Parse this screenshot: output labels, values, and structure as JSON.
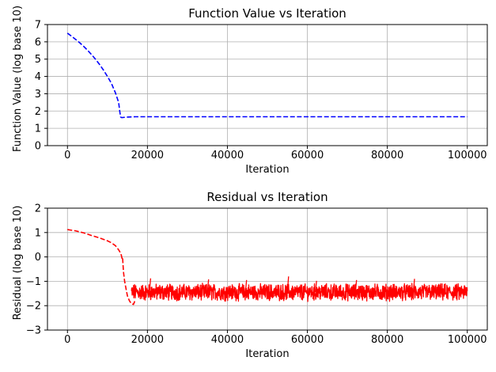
{
  "chart_data": [
    {
      "type": "line",
      "title": "Function Value vs Iteration",
      "xlabel": "Iteration",
      "ylabel": "Function Value (log base 10)",
      "xlim": [
        -5000,
        105000
      ],
      "ylim": [
        0,
        7
      ],
      "x_ticks": [
        0,
        20000,
        40000,
        60000,
        80000,
        100000
      ],
      "x_tick_labels": [
        "0",
        "20000",
        "40000",
        "60000",
        "80000",
        "100000"
      ],
      "y_ticks": [
        0,
        1,
        2,
        3,
        4,
        5,
        6,
        7
      ],
      "y_tick_labels": [
        "0",
        "1",
        "2",
        "3",
        "4",
        "5",
        "6",
        "7"
      ],
      "grid": true,
      "series": [
        {
          "color": "#0000ff",
          "line_style": "dashed",
          "x": [
            0,
            1000,
            2000,
            3000,
            4000,
            5000,
            6000,
            7000,
            8000,
            9000,
            10000,
            11000,
            12000,
            12800,
            13100,
            13300,
            13600,
            14000,
            15000,
            16000,
            17000,
            20000,
            40000,
            60000,
            80000,
            100000
          ],
          "y": [
            6.5,
            6.33,
            6.15,
            5.96,
            5.75,
            5.52,
            5.27,
            5.0,
            4.7,
            4.37,
            4.0,
            3.6,
            3.05,
            2.5,
            1.95,
            1.65,
            1.62,
            1.63,
            1.65,
            1.66,
            1.67,
            1.67,
            1.67,
            1.67,
            1.67,
            1.67
          ]
        }
      ]
    },
    {
      "type": "line",
      "title": "Residual vs Iteration",
      "xlabel": "Iteration",
      "ylabel": "Residual  (log base 10)",
      "xlim": [
        -5000,
        105000
      ],
      "ylim": [
        -3,
        2
      ],
      "x_ticks": [
        0,
        20000,
        40000,
        60000,
        80000,
        100000
      ],
      "x_tick_labels": [
        "0",
        "20000",
        "40000",
        "60000",
        "80000",
        "100000"
      ],
      "y_ticks": [
        -3,
        -2,
        -1,
        0,
        1,
        2
      ],
      "y_tick_labels": [
        "−3",
        "−2",
        "−1",
        "0",
        "1",
        "2"
      ],
      "grid": true,
      "series": [
        {
          "color": "#ff0000",
          "line_style": "dashed",
          "x": [
            0,
            2000,
            4000,
            6000,
            8000,
            10000,
            11000,
            12000,
            12500,
            13000,
            13300,
            13500,
            13700,
            13800,
            14000,
            14300,
            14700,
            15000,
            15500,
            16000,
            16500,
            17000
          ],
          "y": [
            1.12,
            1.07,
            0.99,
            0.88,
            0.78,
            0.66,
            0.58,
            0.46,
            0.36,
            0.24,
            0.15,
            0.05,
            -0.1,
            -0.05,
            -0.6,
            -1.0,
            -1.35,
            -1.6,
            -1.8,
            -1.92,
            -1.95,
            -1.75
          ]
        },
        {
          "color": "#ff0000",
          "line_style": "solid",
          "noise": true,
          "x_range": [
            16000,
            100000
          ],
          "mean": -1.45,
          "band": [
            -2.0,
            -0.9
          ],
          "spikes": [
            {
              "x": 20500,
              "y": -0.88
            },
            {
              "x": 35000,
              "y": -0.92
            },
            {
              "x": 44500,
              "y": -0.95
            },
            {
              "x": 55000,
              "y": -0.8
            },
            {
              "x": 62000,
              "y": -0.98
            },
            {
              "x": 72000,
              "y": -0.95
            },
            {
              "x": 86500,
              "y": -0.9
            }
          ]
        }
      ]
    }
  ]
}
